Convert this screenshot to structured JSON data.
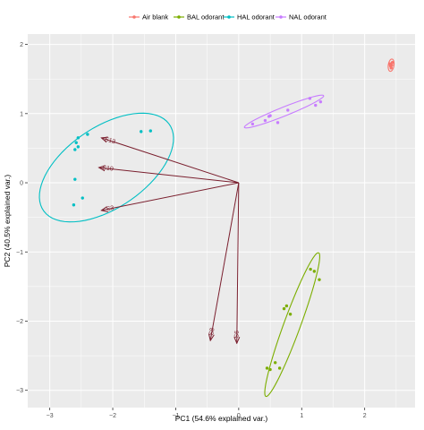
{
  "chart_data": {
    "type": "scatter",
    "title": "",
    "xlabel": "PC1 (54.6% explained var.)",
    "ylabel": "PC2 (40.5% explained var.)",
    "xlim": [
      -3.35,
      2.8
    ],
    "ylim": [
      -3.25,
      2.15
    ],
    "x_ticks": [
      -3,
      -2,
      -1,
      0,
      1,
      2
    ],
    "y_ticks": [
      -3,
      -2,
      -1,
      0,
      1,
      2
    ],
    "grid": true,
    "legend_position": "top",
    "series": [
      {
        "name": "Air blank",
        "color": "#F8766D",
        "points": [
          [
            2.4,
            1.72
          ],
          [
            2.42,
            1.66
          ],
          [
            2.44,
            1.74
          ],
          [
            2.41,
            1.69
          ],
          [
            2.43,
            1.7
          ]
        ],
        "ellipse": {
          "center": [
            2.42,
            1.7
          ],
          "semi_major": 0.09,
          "semi_minor": 0.045,
          "angle_deg": 80
        }
      },
      {
        "name": "BAL odorant",
        "color": "#7CAE00",
        "points": [
          [
            0.65,
            -2.68
          ],
          [
            0.45,
            -2.68
          ],
          [
            0.5,
            -2.7
          ],
          [
            0.72,
            -1.82
          ],
          [
            0.76,
            -1.78
          ],
          [
            0.82,
            -1.9
          ],
          [
            1.14,
            -1.25
          ],
          [
            1.2,
            -1.28
          ],
          [
            1.28,
            -1.4
          ],
          [
            0.58,
            -2.6
          ]
        ],
        "ellipse": {
          "center": [
            0.85,
            -2.05
          ],
          "semi_major": 1.12,
          "semi_minor": 0.13,
          "angle_deg": 68
        }
      },
      {
        "name": "HAL odorant",
        "color": "#00BFC4",
        "points": [
          [
            -2.55,
            0.65
          ],
          [
            -2.6,
            0.48
          ],
          [
            -2.55,
            0.52
          ],
          [
            -2.58,
            0.58
          ],
          [
            -2.4,
            0.7
          ],
          [
            -2.6,
            0.05
          ],
          [
            -2.48,
            -0.22
          ],
          [
            -2.62,
            -0.32
          ],
          [
            -1.55,
            0.74
          ],
          [
            -1.4,
            0.75
          ]
        ],
        "ellipse": {
          "center": [
            -2.1,
            0.22
          ],
          "semi_major": 1.18,
          "semi_minor": 0.6,
          "angle_deg": 30
        }
      },
      {
        "name": "NAL odorant",
        "color": "#C77CFF",
        "points": [
          [
            0.22,
            0.85
          ],
          [
            0.42,
            0.9
          ],
          [
            0.48,
            0.96
          ],
          [
            0.62,
            0.87
          ],
          [
            0.78,
            1.05
          ],
          [
            1.13,
            1.22
          ],
          [
            1.22,
            1.12
          ],
          [
            1.3,
            1.17
          ],
          [
            0.5,
            0.97
          ]
        ],
        "ellipse": {
          "center": [
            0.72,
            1.03
          ],
          "semi_major": 0.67,
          "semi_minor": 0.065,
          "angle_deg": 20
        }
      }
    ],
    "loadings": [
      {
        "label": "S13",
        "x": -2.18,
        "y": 0.65
      },
      {
        "label": "S10",
        "x": -2.22,
        "y": 0.22
      },
      {
        "label": "S3",
        "x": -2.18,
        "y": -0.4
      },
      {
        "label": "S8",
        "x": -0.45,
        "y": -2.28
      },
      {
        "label": "S6",
        "x": -0.03,
        "y": -2.32
      }
    ],
    "loading_color": "#7a1f2e"
  }
}
